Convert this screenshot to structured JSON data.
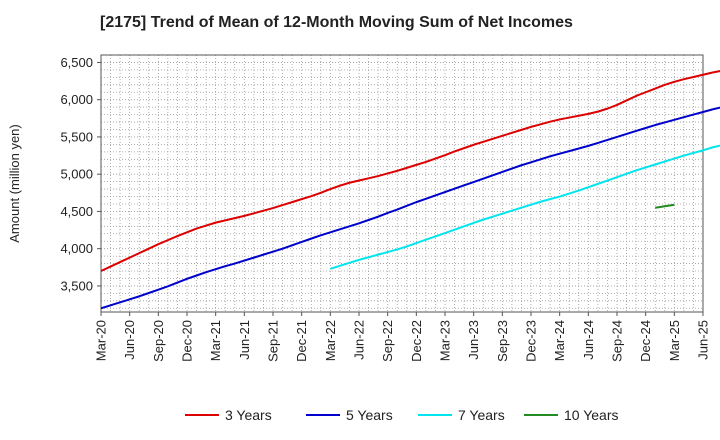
{
  "chart_data": {
    "type": "line",
    "title": "[2175]  Trend of Mean of 12-Month Moving Sum of Net Incomes",
    "ylabel": "Amount (million yen)",
    "xlabel": "",
    "ylim": [
      3150,
      6600
    ],
    "yticks": [
      3500,
      4000,
      4500,
      5000,
      5500,
      6000,
      6500
    ],
    "ytick_labels": [
      "3,500",
      "4,000",
      "4,500",
      "5,000",
      "5,500",
      "6,000",
      "6,500"
    ],
    "xtick_labels": [
      "Mar-20",
      "Jun-20",
      "Sep-20",
      "Dec-20",
      "Mar-21",
      "Jun-21",
      "Sep-21",
      "Dec-21",
      "Mar-22",
      "Jun-22",
      "Sep-22",
      "Dec-22",
      "Mar-23",
      "Jun-23",
      "Sep-23",
      "Dec-23",
      "Mar-24",
      "Jun-24",
      "Sep-24",
      "Dec-24",
      "Mar-25",
      "Jun-25"
    ],
    "grid": true,
    "legend_position": "bottom",
    "series": [
      {
        "name": "3 Years",
        "color": "#dd0000",
        "start": "Mar-20",
        "values": [
          3700,
          3760,
          3820,
          3880,
          3940,
          4000,
          4060,
          4115,
          4170,
          4220,
          4270,
          4310,
          4350,
          4380,
          4410,
          4440,
          4475,
          4510,
          4545,
          4585,
          4625,
          4665,
          4705,
          4750,
          4800,
          4845,
          4885,
          4915,
          4945,
          4975,
          5010,
          5045,
          5085,
          5125,
          5165,
          5210,
          5255,
          5305,
          5350,
          5395,
          5435,
          5475,
          5515,
          5555,
          5595,
          5635,
          5670,
          5705,
          5735,
          5760,
          5785,
          5810,
          5840,
          5880,
          5930,
          5990,
          6050,
          6100,
          6150,
          6200,
          6240,
          6275,
          6305,
          6335,
          6365,
          6390,
          6415,
          6440,
          6460,
          6480
        ]
      },
      {
        "name": "5 Years",
        "color": "#0000cc",
        "start": "Mar-20",
        "values": [
          3200,
          3240,
          3280,
          3320,
          3360,
          3405,
          3450,
          3495,
          3545,
          3595,
          3640,
          3685,
          3725,
          3765,
          3800,
          3840,
          3880,
          3920,
          3960,
          4000,
          4045,
          4090,
          4135,
          4180,
          4220,
          4260,
          4300,
          4340,
          4385,
          4430,
          4480,
          4525,
          4575,
          4625,
          4670,
          4715,
          4760,
          4805,
          4850,
          4895,
          4940,
          4985,
          5030,
          5075,
          5120,
          5160,
          5200,
          5240,
          5275,
          5310,
          5345,
          5380,
          5420,
          5460,
          5500,
          5540,
          5580,
          5620,
          5660,
          5695,
          5730,
          5765,
          5800,
          5835,
          5870,
          5900,
          5930,
          5950,
          5965
        ]
      },
      {
        "name": "7 Years",
        "color": "#00e5ee",
        "start": "Mar-22",
        "values": [
          3730,
          3770,
          3810,
          3850,
          3885,
          3920,
          3955,
          3990,
          4030,
          4075,
          4120,
          4165,
          4210,
          4255,
          4300,
          4345,
          4390,
          4430,
          4470,
          4510,
          4550,
          4590,
          4630,
          4665,
          4700,
          4740,
          4780,
          4825,
          4870,
          4915,
          4960,
          5005,
          5050,
          5090,
          5130,
          5170,
          5210,
          5250,
          5285,
          5320,
          5360,
          5390,
          5420
        ]
      },
      {
        "name": "10 Years",
        "color": "#228b22",
        "start": "Jan-25",
        "values": [
          4550,
          4570,
          4590
        ]
      }
    ]
  }
}
